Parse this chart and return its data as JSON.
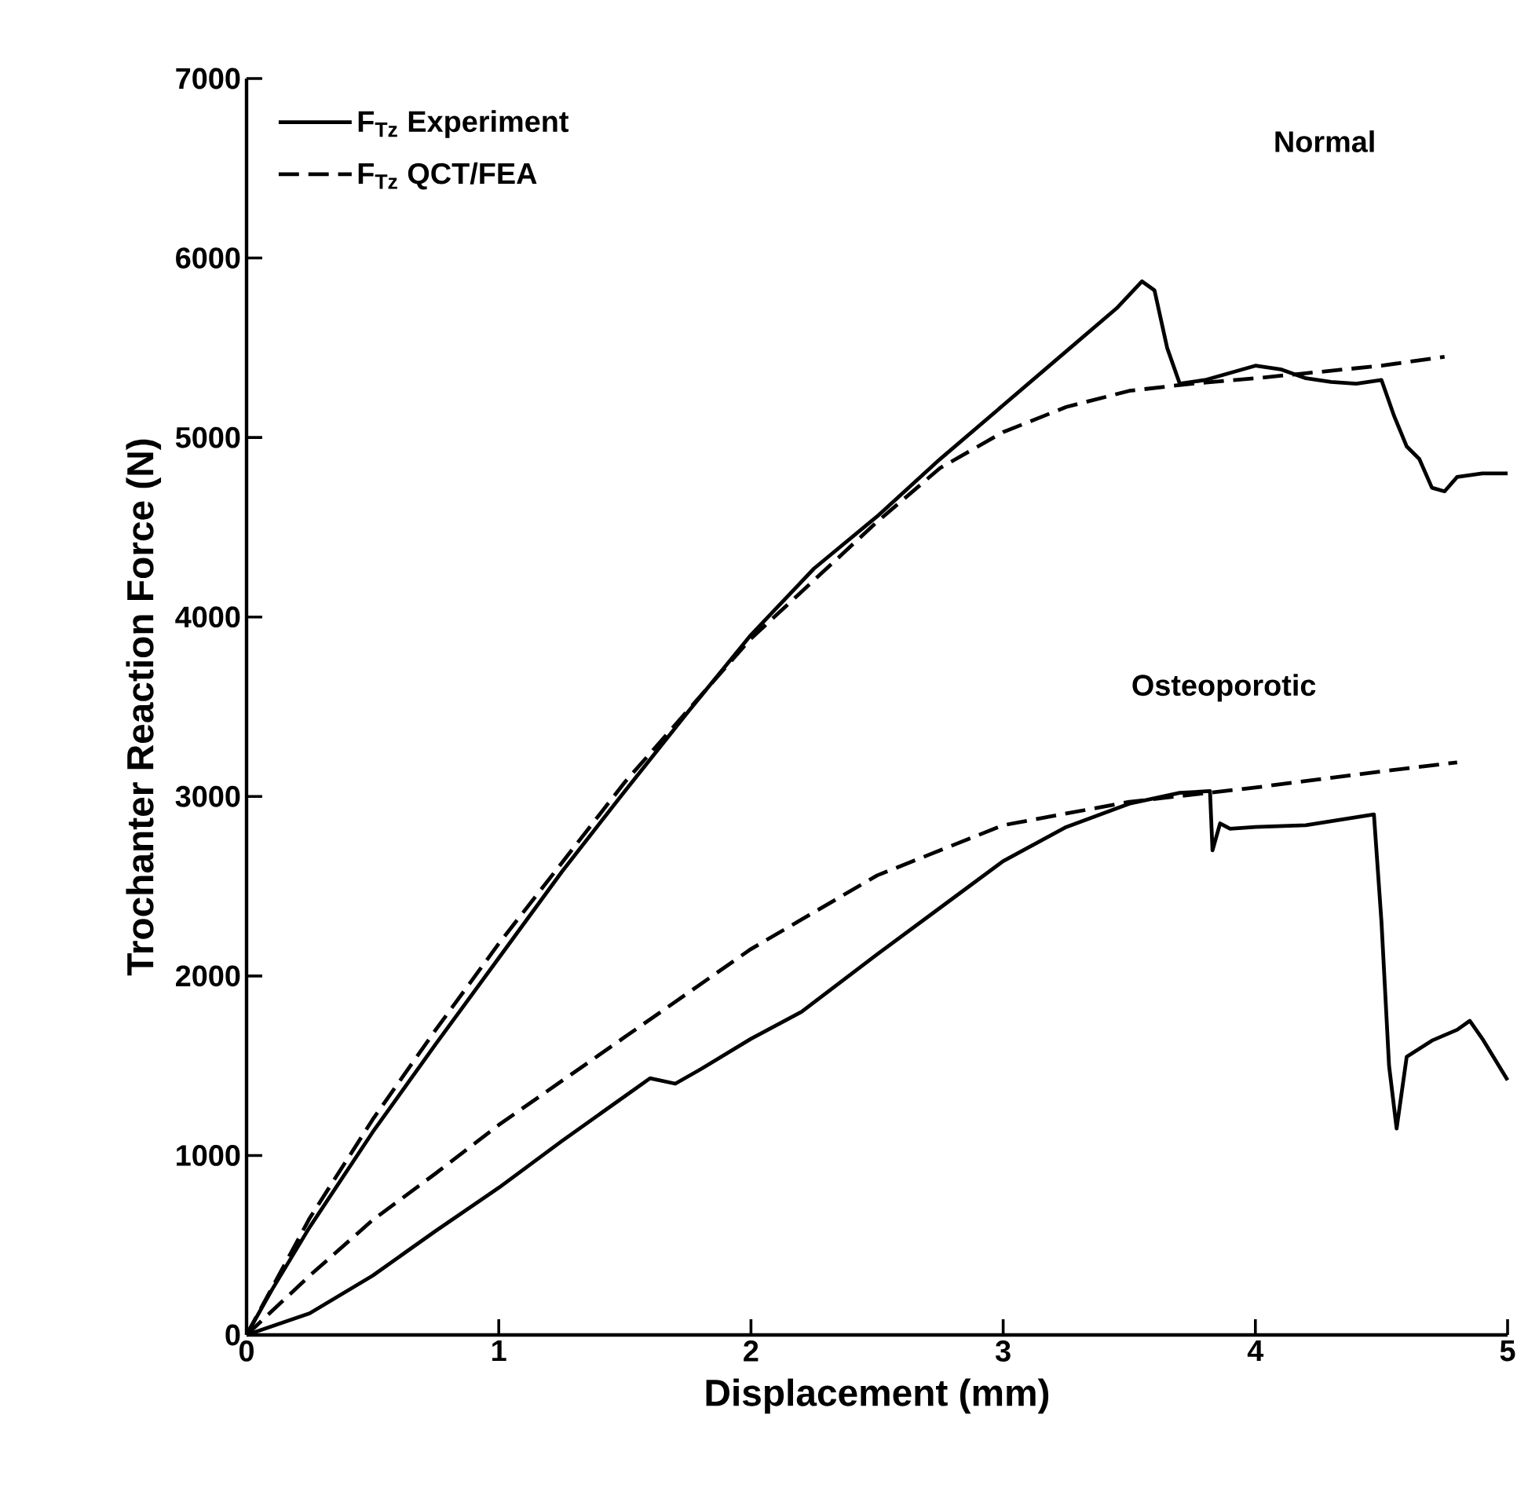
{
  "chart_data": {
    "type": "line",
    "xlabel": "Displacement (mm)",
    "ylabel": "Trochanter Reaction Force (N)",
    "xlim": [
      0,
      5
    ],
    "ylim": [
      0,
      7000
    ],
    "xticks": [
      0,
      1,
      2,
      3,
      4,
      5
    ],
    "yticks": [
      0,
      1000,
      2000,
      3000,
      4000,
      5000,
      6000,
      7000
    ],
    "grid": false,
    "legend": "top left",
    "marker": "none",
    "series": [
      {
        "name": "F$_{Tz}$ Experiment",
        "color": "#000000",
        "line_style": "solid",
        "x": [
          0,
          0.1,
          0.25,
          0.5,
          0.75,
          1,
          1.25,
          1.5,
          1.75,
          2,
          2.25,
          2.5,
          2.75,
          3,
          3.25,
          3.45,
          3.55,
          3.6,
          3.65,
          3.7,
          3.8,
          3.9,
          4.0,
          4.1,
          4.2,
          4.3,
          4.4,
          4.5,
          4.55,
          4.6,
          4.65,
          4.7,
          4.75,
          4.8,
          4.9,
          5
        ],
        "values": [
          0,
          250,
          600,
          1130,
          1620,
          2100,
          2580,
          3030,
          3470,
          3900,
          4270,
          4560,
          4880,
          5180,
          5480,
          5720,
          5870,
          5820,
          5500,
          5300,
          5320,
          5360,
          5400,
          5380,
          5330,
          5310,
          5300,
          5320,
          5120,
          4950,
          4880,
          4720,
          4700,
          4780,
          4800,
          4800
        ]
      },
      {
        "name": "F$_{Tz}$ QCT/FEA",
        "color": "#000000",
        "line_style": "dashed",
        "x": [
          0,
          0.25,
          0.5,
          0.75,
          1,
          1.5,
          2,
          2.5,
          2.75,
          3,
          3.25,
          3.5,
          3.75,
          4,
          4.5,
          4.75
        ],
        "values": [
          0,
          650,
          1200,
          1700,
          2180,
          3080,
          3880,
          4530,
          4830,
          5030,
          5170,
          5260,
          5300,
          5330,
          5400,
          5450
        ]
      },
      {
        "color": "#000000",
        "line_style": "solid",
        "x": [
          0,
          0.25,
          0.5,
          0.75,
          1,
          1.25,
          1.5,
          1.6,
          1.7,
          1.8,
          2,
          2.2,
          2.5,
          2.75,
          3,
          3.25,
          3.5,
          3.7,
          3.82,
          3.83,
          3.86,
          3.9,
          4.0,
          4.2,
          4.47,
          4.5,
          4.53,
          4.56,
          4.6,
          4.7,
          4.8,
          4.85,
          4.9,
          5
        ],
        "values": [
          0,
          120,
          330,
          580,
          820,
          1080,
          1330,
          1430,
          1400,
          1480,
          1650,
          1800,
          2120,
          2380,
          2640,
          2830,
          2960,
          3020,
          3030,
          2700,
          2850,
          2820,
          2830,
          2840,
          2900,
          2300,
          1500,
          1150,
          1550,
          1640,
          1700,
          1750,
          1650,
          1420
        ]
      },
      {
        "color": "#000000",
        "line_style": "dashed",
        "x": [
          0,
          0.25,
          0.5,
          0.75,
          1,
          1.5,
          2,
          2.5,
          3,
          3.5,
          4,
          4.5,
          4.8
        ],
        "values": [
          0,
          330,
          640,
          900,
          1170,
          1660,
          2150,
          2560,
          2840,
          2970,
          3050,
          3140,
          3190
        ]
      }
    ],
    "annotations": [
      "Normal",
      "Osteoporotic"
    ]
  }
}
